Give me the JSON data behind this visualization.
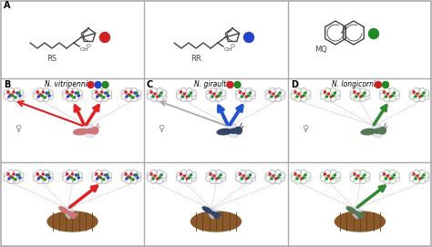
{
  "bg_color": "#ffffff",
  "border_color": "#aaaaaa",
  "title_a": "A",
  "title_b": "B",
  "title_c": "C",
  "title_d": "D",
  "label_rs": "RS",
  "label_rr": "RR",
  "label_mq": "MQ",
  "species_b": "N. vitripennis",
  "species_c": "N. giraulti",
  "species_d": "N. longicornis",
  "dots_b": [
    "red",
    "blue",
    "green"
  ],
  "dots_c": [
    "red",
    "green"
  ],
  "dots_d": [
    "red",
    "green"
  ],
  "arrow_color_b": "#dd2222",
  "arrow_color_c": "#2255cc",
  "arrow_color_d": "#338833",
  "insect_color_b": "#cc7777",
  "insect_color_c": "#334466",
  "insect_color_d": "#557755",
  "dot_red": "#cc2222",
  "dot_blue": "#2244cc",
  "dot_green": "#228822",
  "host_color": "#8B5A2B",
  "host_stripe": "#6B3A1B",
  "cloud_bg_b": "#fff5f5",
  "cloud_bg_c": "#f5f5ff",
  "cloud_bg_d": "#f5fff5",
  "cloud_edge": "#aaaaaa",
  "grid_color": "#aaaaaa",
  "label_color": "#222222",
  "female_color": "#888888",
  "dashes_color": "#999999"
}
